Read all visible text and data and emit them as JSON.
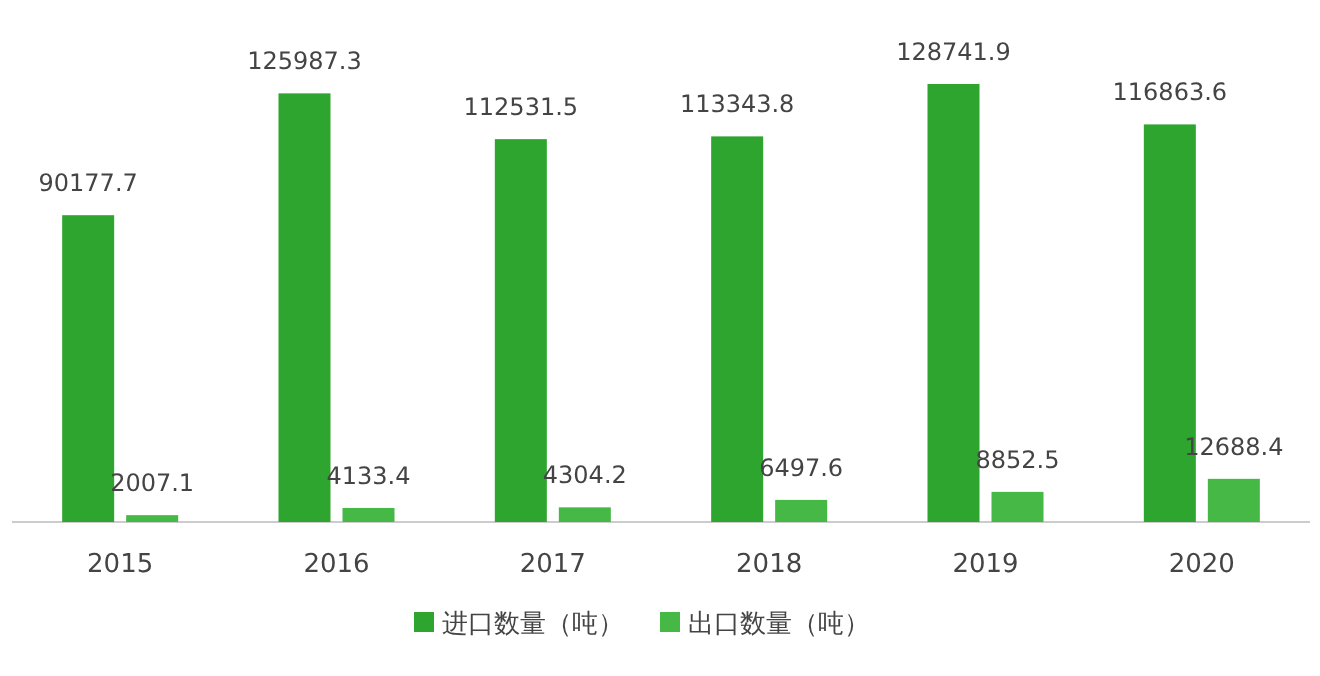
{
  "chart_data": {
    "type": "bar",
    "categories": [
      "2015",
      "2016",
      "2017",
      "2018",
      "2019",
      "2020"
    ],
    "series": [
      {
        "name": "进口数量（吨）",
        "color": "#2ea52e",
        "values": [
          90177.7,
          125987.3,
          112531.5,
          113343.8,
          128741.9,
          116863.6
        ]
      },
      {
        "name": "出口数量（吨）",
        "color": "#45b845",
        "values": [
          2007.1,
          4133.4,
          4304.2,
          6497.6,
          8852.5,
          12688.4
        ]
      }
    ],
    "data_labels": true,
    "legend": "bottom"
  }
}
